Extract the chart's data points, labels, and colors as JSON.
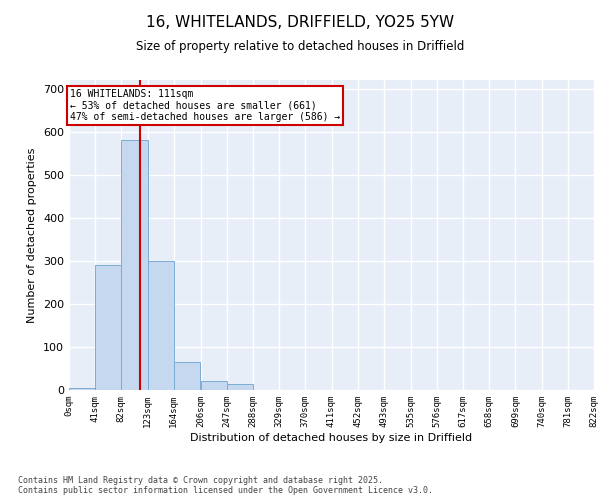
{
  "title": "16, WHITELANDS, DRIFFIELD, YO25 5YW",
  "subtitle": "Size of property relative to detached houses in Driffield",
  "xlabel": "Distribution of detached houses by size in Driffield",
  "ylabel": "Number of detached properties",
  "bar_color": "#c5d8f0",
  "bar_edge_color": "#7aadd4",
  "bins": [
    0,
    41,
    82,
    123,
    164,
    206,
    247,
    288,
    329,
    370,
    411,
    452,
    493,
    535,
    576,
    617,
    658,
    699,
    740,
    781,
    822
  ],
  "bin_labels": [
    "0sqm",
    "41sqm",
    "82sqm",
    "123sqm",
    "164sqm",
    "206sqm",
    "247sqm",
    "288sqm",
    "329sqm",
    "370sqm",
    "411sqm",
    "452sqm",
    "493sqm",
    "535sqm",
    "576sqm",
    "617sqm",
    "658sqm",
    "699sqm",
    "740sqm",
    "781sqm",
    "822sqm"
  ],
  "bar_heights": [
    5,
    290,
    580,
    300,
    65,
    20,
    15,
    0,
    0,
    0,
    0,
    0,
    0,
    0,
    0,
    0,
    0,
    0,
    0,
    0
  ],
  "property_value": 111,
  "property_label": "16 WHITELANDS: 111sqm",
  "annotation_line1": "← 53% of detached houses are smaller (661)",
  "annotation_line2": "47% of semi-detached houses are larger (586) →",
  "vline_color": "#cc0000",
  "annotation_box_color": "#cc0000",
  "ylim": [
    0,
    720
  ],
  "yticks": [
    0,
    100,
    200,
    300,
    400,
    500,
    600,
    700
  ],
  "background_color": "#e8eef8",
  "grid_color": "#ffffff",
  "footer_line1": "Contains HM Land Registry data © Crown copyright and database right 2025.",
  "footer_line2": "Contains public sector information licensed under the Open Government Licence v3.0."
}
